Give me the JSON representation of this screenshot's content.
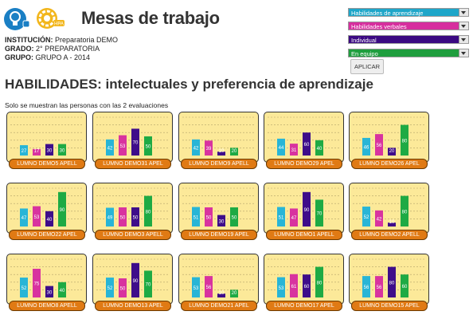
{
  "app": {
    "title": "Mesas de trabajo",
    "logo1_icon": "lightbulb-icon",
    "logo2_icon": "gear-icon",
    "logo2_text": "HPA"
  },
  "info": {
    "institution_label": "INSTITUCIÓN:",
    "institution": "Preparatoria DEMO",
    "grade_label": "GRADO:",
    "grade": "2° PREPARATORIA",
    "group_label": "GRUPO:",
    "group": "GRUPO A - 2014"
  },
  "filters": [
    {
      "value": "Habilidades de aprendizaje",
      "color": "#1ea6c9"
    },
    {
      "value": "Habilidades verbales",
      "color": "#d62e9e"
    },
    {
      "value": "Individual",
      "color": "#3b0a82"
    },
    {
      "value": "En equipo",
      "color": "#1f9e3e"
    }
  ],
  "apply_label": "APLICAR",
  "section_title": "HABILIDADES: intelectuales y preferencia de aprendizaje",
  "note": "Solo se muestran las personas con las 2 evaluaciones",
  "series_colors": [
    "#28b5d6",
    "#d8339f",
    "#3e0d8a",
    "#1eaa44"
  ],
  "chart_data": [
    {
      "type": "bar",
      "name": "LUMNO DEMO5 APELL",
      "values": [
        27,
        17,
        30,
        30
      ],
      "ylim": [
        0,
        100
      ]
    },
    {
      "type": "bar",
      "name": "LUMNO DEMO31 APEL",
      "values": [
        42,
        53,
        70,
        50
      ],
      "ylim": [
        0,
        100
      ]
    },
    {
      "type": "bar",
      "name": "LUMNO DEMO9 APELL",
      "values": [
        42,
        39,
        10,
        20
      ],
      "ylim": [
        0,
        100
      ]
    },
    {
      "type": "bar",
      "name": "LUMNO DEMO29 APEL",
      "values": [
        44,
        31,
        60,
        40
      ],
      "ylim": [
        0,
        100
      ]
    },
    {
      "type": "bar",
      "name": "LUMNO DEMO26 APEL",
      "values": [
        46,
        56,
        20,
        80
      ],
      "ylim": [
        0,
        100
      ]
    },
    {
      "type": "bar",
      "name": "LUMNO DEMO22 APEL",
      "values": [
        47,
        53,
        40,
        90
      ],
      "ylim": [
        0,
        100
      ]
    },
    {
      "type": "bar",
      "name": "LUMNO DEMO3 APELL",
      "values": [
        49,
        50,
        50,
        80
      ],
      "ylim": [
        0,
        100
      ]
    },
    {
      "type": "bar",
      "name": "LUMNO DEMO19 APEL",
      "values": [
        51,
        50,
        30,
        50
      ],
      "ylim": [
        0,
        100
      ]
    },
    {
      "type": "bar",
      "name": "LUMNO DEMO1 APELL",
      "values": [
        51,
        47,
        90,
        70
      ],
      "ylim": [
        0,
        100
      ]
    },
    {
      "type": "bar",
      "name": "LUMNO DEMO2 APELL",
      "values": [
        52,
        42,
        10,
        80
      ],
      "ylim": [
        0,
        100
      ]
    },
    {
      "type": "bar",
      "name": "LUMNO DEMO8 APELL",
      "values": [
        52,
        75,
        30,
        40
      ],
      "ylim": [
        0,
        100
      ]
    },
    {
      "type": "bar",
      "name": "LUMNO DEMO13 APEL",
      "values": [
        52,
        50,
        90,
        70
      ],
      "ylim": [
        0,
        100
      ]
    },
    {
      "type": "bar",
      "name": "LUMNO DEMO21 APEL",
      "values": [
        53,
        56,
        10,
        20
      ],
      "ylim": [
        0,
        100
      ]
    },
    {
      "type": "bar",
      "name": "LUMNO DEMO17 APEL",
      "values": [
        53,
        61,
        60,
        80
      ],
      "ylim": [
        0,
        100
      ]
    },
    {
      "type": "bar",
      "name": "LUMNO DEMO15 APEL",
      "values": [
        56,
        56,
        80,
        60
      ],
      "ylim": [
        0,
        100
      ]
    }
  ]
}
